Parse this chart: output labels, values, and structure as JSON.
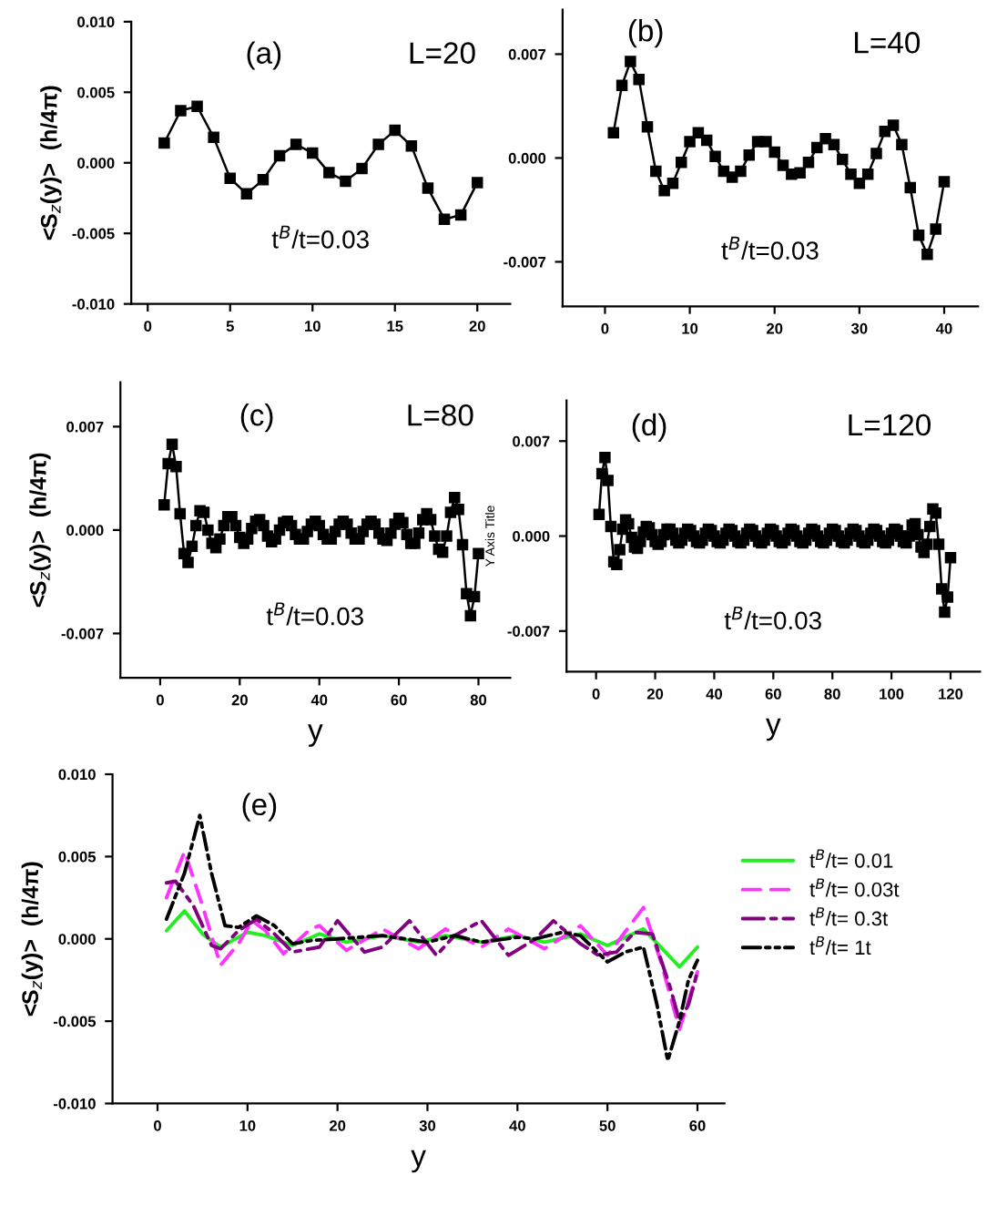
{
  "chart_data": [
    {
      "type": "line",
      "ylabel": "<S$_{z}$(y)>  (h/4π)",
      "annotations": [
        "(a)",
        "L=20",
        "t$^{B}$/t=0.03"
      ],
      "marker": "square",
      "line_style": "solid",
      "x": [
        1,
        2,
        3,
        4,
        5,
        6,
        7,
        8,
        9,
        10,
        11,
        12,
        13,
        14,
        15,
        16,
        17,
        18,
        19,
        20
      ],
      "series": [
        {
          "color": "#000000",
          "values": [
            0.0014,
            0.0037,
            0.004,
            0.0018,
            -0.0011,
            -0.0022,
            -0.0012,
            0.0005,
            0.0013,
            0.0007,
            -0.0007,
            -0.0013,
            -0.0004,
            0.0013,
            0.0023,
            0.0012,
            -0.0018,
            -0.004,
            -0.0037,
            -0.0014
          ]
        }
      ],
      "xlim": [
        -1,
        22
      ],
      "xticks": [
        0,
        5,
        10,
        15,
        20
      ],
      "ylim": [
        -0.01,
        0.01
      ],
      "yticks": [
        {
          "value": -0.01,
          "label": "-0.010"
        },
        {
          "value": -0.005,
          "label": "-0.005"
        },
        {
          "value": 0,
          "label": "0.000"
        },
        {
          "value": 0.005,
          "label": "0.005"
        },
        {
          "value": 0.01,
          "label": "0.010"
        }
      ]
    },
    {
      "type": "line",
      "annotations": [
        "(b)",
        "L=40",
        "t$^{B}$/t=0.03"
      ],
      "marker": "square",
      "line_style": "solid",
      "x": [
        1,
        2,
        3,
        4,
        5,
        6,
        7,
        8,
        9,
        10,
        11,
        12,
        13,
        14,
        15,
        16,
        17,
        18,
        19,
        20,
        21,
        22,
        23,
        24,
        25,
        26,
        27,
        28,
        29,
        30,
        31,
        32,
        33,
        34,
        35,
        36,
        37,
        38,
        39,
        40
      ],
      "series": [
        {
          "color": "#000000",
          "values": [
            0.0017,
            0.0049,
            0.0065,
            0.0053,
            0.0021,
            -0.0009,
            -0.0022,
            -0.0017,
            -0.0003,
            0.0011,
            0.0017,
            0.0012,
            0.0001,
            -0.0009,
            -0.0013,
            -0.0009,
            0.0002,
            0.0011,
            0.0011,
            0.0004,
            -0.0005,
            -0.0011,
            -0.001,
            -0.0003,
            0.0007,
            0.0013,
            0.0009,
            -0.0001,
            -0.0011,
            -0.0017,
            -0.0011,
            0.0003,
            0.0018,
            0.0022,
            0.0009,
            -0.002,
            -0.0052,
            -0.0065,
            -0.0048,
            -0.0016
          ]
        }
      ],
      "xlim": [
        -5,
        44
      ],
      "xticks": [
        0,
        10,
        20,
        30,
        40
      ],
      "ylim": [
        -0.01,
        0.01
      ],
      "yticks": [
        {
          "value": -0.007,
          "label": "-0.007"
        },
        {
          "value": 0,
          "label": "0.000"
        },
        {
          "value": 0.007,
          "label": "0.007"
        }
      ]
    },
    {
      "type": "line",
      "ylabel": "<S$_{z}$(y)>  (h/4π)",
      "xlabel": "y",
      "annotations": [
        "(c)",
        "L=80",
        "t$^{B}$/t=0.03"
      ],
      "marker": "square",
      "line_style": "solid",
      "x": [
        1,
        2,
        3,
        4,
        5,
        6,
        7,
        8,
        9,
        10,
        11,
        12,
        13,
        14,
        15,
        16,
        17,
        18,
        19,
        20,
        21,
        22,
        23,
        24,
        25,
        26,
        27,
        28,
        29,
        30,
        31,
        32,
        33,
        34,
        35,
        36,
        37,
        38,
        39,
        40,
        41,
        42,
        43,
        44,
        45,
        46,
        47,
        48,
        49,
        50,
        51,
        52,
        53,
        54,
        55,
        56,
        57,
        58,
        59,
        60,
        61,
        62,
        63,
        64,
        65,
        66,
        67,
        68,
        69,
        70,
        71,
        72,
        73,
        74,
        75,
        76,
        77,
        78,
        79,
        80
      ],
      "series": [
        {
          "color": "#000000",
          "values": [
            0.0017,
            0.0045,
            0.0058,
            0.0043,
            0.0011,
            -0.0016,
            -0.0022,
            -0.0011,
            0.0003,
            0.0013,
            0.0012,
            0.0,
            -0.0009,
            -0.0012,
            -0.0006,
            0.0003,
            0.0009,
            0.0009,
            0.0003,
            -0.0005,
            -0.0009,
            -0.0006,
            0.0001,
            0.0006,
            0.0007,
            0.0003,
            -0.0004,
            -0.0008,
            -0.0006,
            0.0,
            0.0005,
            0.0006,
            0.0003,
            -0.0003,
            -0.0006,
            -0.0006,
            -0.0001,
            0.0004,
            0.0006,
            0.0003,
            -0.0003,
            -0.0006,
            -0.0006,
            -0.0001,
            0.0004,
            0.0006,
            0.0004,
            -0.0002,
            -0.0006,
            -0.0006,
            -0.0001,
            0.0004,
            0.0006,
            0.0004,
            -0.0002,
            -0.0006,
            -0.0007,
            -0.0002,
            0.0004,
            0.0008,
            0.0005,
            -0.0003,
            -0.0009,
            -0.0009,
            -0.0002,
            0.0007,
            0.0011,
            0.0007,
            -0.0004,
            -0.0013,
            -0.0015,
            -0.0004,
            0.0012,
            0.0022,
            0.0014,
            -0.001,
            -0.0043,
            -0.0058,
            -0.0045,
            -0.0016
          ]
        }
      ],
      "xlim": [
        -10,
        88
      ],
      "xticks": [
        0,
        20,
        40,
        60,
        80
      ],
      "ylim": [
        -0.01,
        0.01
      ],
      "yticks": [
        {
          "value": -0.007,
          "label": "-0.007"
        },
        {
          "value": 0,
          "label": "0.000"
        },
        {
          "value": 0.007,
          "label": "0.007"
        }
      ]
    },
    {
      "type": "line",
      "ylabel": "Y Axis Title",
      "xlabel": "y",
      "annotations": [
        "(d)",
        "L=120",
        "t$^{B}$/t=0.03"
      ],
      "marker": "square",
      "line_style": "solid",
      "x": [
        1,
        2,
        3,
        4,
        5,
        6,
        7,
        8,
        9,
        10,
        11,
        12,
        13,
        14,
        15,
        16,
        17,
        18,
        19,
        20,
        21,
        22,
        23,
        24,
        25,
        26,
        27,
        28,
        29,
        30,
        31,
        32,
        33,
        34,
        35,
        36,
        37,
        38,
        39,
        40,
        41,
        42,
        43,
        44,
        45,
        46,
        47,
        48,
        49,
        50,
        51,
        52,
        53,
        54,
        55,
        56,
        57,
        58,
        59,
        60,
        61,
        62,
        63,
        64,
        65,
        66,
        67,
        68,
        69,
        70,
        71,
        72,
        73,
        74,
        75,
        76,
        77,
        78,
        79,
        80,
        81,
        82,
        83,
        84,
        85,
        86,
        87,
        88,
        89,
        90,
        91,
        92,
        93,
        94,
        95,
        96,
        97,
        98,
        99,
        100,
        101,
        102,
        103,
        104,
        105,
        106,
        107,
        108,
        109,
        110,
        111,
        112,
        113,
        114,
        115,
        116,
        117,
        118,
        119,
        120
      ],
      "series": [
        {
          "color": "#000000",
          "values": [
            0.0016,
            0.0046,
            0.0058,
            0.0041,
            0.0007,
            -0.0019,
            -0.0021,
            -0.001,
            0.0005,
            0.0012,
            0.0009,
            -0.0001,
            -0.0008,
            -0.0009,
            -0.0004,
            0.0003,
            0.0007,
            0.0006,
            0.0001,
            -0.0004,
            -0.0006,
            -0.0004,
            0.0001,
            0.0005,
            0.0005,
            0.0002,
            -0.0003,
            -0.0005,
            -0.0003,
            0.0002,
            0.0005,
            0.0004,
            0.0,
            -0.0004,
            -0.0005,
            -0.0003,
            0.0002,
            0.0005,
            0.0004,
            0.0,
            -0.0004,
            -0.0005,
            -0.0003,
            0.0002,
            0.0005,
            0.0004,
            0.0,
            -0.0004,
            -0.0005,
            -0.0003,
            0.0002,
            0.0005,
            0.0004,
            0.0,
            -0.0004,
            -0.0005,
            -0.0003,
            0.0002,
            0.0005,
            0.0004,
            0.0,
            -0.0004,
            -0.0005,
            -0.0003,
            0.0002,
            0.0005,
            0.0004,
            0.0,
            -0.0004,
            -0.0005,
            -0.0003,
            0.0002,
            0.0005,
            0.0004,
            0.0,
            -0.0004,
            -0.0005,
            -0.0003,
            0.0002,
            0.0005,
            0.0004,
            0.0,
            -0.0004,
            -0.0005,
            -0.0003,
            0.0002,
            0.0005,
            0.0004,
            0.0,
            -0.0004,
            -0.0005,
            -0.0003,
            0.0002,
            0.0005,
            0.0004,
            0.0,
            -0.0004,
            -0.0005,
            -0.0003,
            0.0002,
            0.0005,
            0.0004,
            0.0,
            -0.0004,
            -0.0005,
            0.0,
            0.0008,
            0.0009,
            0.0001,
            -0.0008,
            -0.0012,
            -0.0006,
            0.0007,
            0.002,
            0.0017,
            -0.0006,
            -0.0039,
            -0.0056,
            -0.0045,
            -0.0016
          ]
        }
      ],
      "xlim": [
        -10,
        130
      ],
      "xticks": [
        0,
        20,
        40,
        60,
        80,
        100,
        120
      ],
      "ylim": [
        -0.01,
        0.01
      ],
      "yticks": [
        {
          "value": -0.007,
          "label": "-0.007"
        },
        {
          "value": 0,
          "label": "0.000"
        },
        {
          "value": 0.007,
          "label": "0.007"
        }
      ]
    },
    {
      "type": "line",
      "ylabel": "<S$_{z}$(y)>  (h/4π)",
      "xlabel": "y",
      "annotations": [
        "(e)"
      ],
      "marker": "none",
      "legend": "right",
      "series": [
        {
          "name": "t$^{B}$/t= 0.01",
          "color": "#22ee22",
          "line_style": "solid",
          "x": [
            1,
            3,
            5,
            7,
            10,
            12,
            15,
            18,
            21,
            25,
            29,
            32,
            36,
            40,
            43,
            47,
            50,
            54,
            58,
            60
          ],
          "values": [
            0.0005,
            0.0017,
            0.0003,
            -0.0005,
            0.0004,
            0.0002,
            -0.0004,
            0.0003,
            -0.0002,
            0.0002,
            -0.0002,
            0.0002,
            -0.0002,
            0.0002,
            -0.0002,
            0.0003,
            -0.0004,
            0.0006,
            -0.0017,
            -0.0005
          ]
        },
        {
          "name": "t$^{B}$/t= 0.03t",
          "color": "#ff33ff",
          "line_style": "dashed",
          "x": [
            1,
            3,
            5,
            7,
            9,
            10.5,
            12,
            14,
            17,
            18,
            21,
            25,
            29,
            32,
            36,
            39,
            43,
            47,
            50,
            54,
            56,
            58,
            60
          ],
          "values": [
            0.0025,
            0.0053,
            0.002,
            -0.0016,
            -0.0003,
            0.0011,
            0.0005,
            -0.0009,
            0.0006,
            0.0008,
            -0.0007,
            0.0006,
            -0.0006,
            0.0006,
            -0.0005,
            0.0006,
            -0.0006,
            0.0008,
            -0.001,
            0.0019,
            -0.0015,
            -0.0055,
            -0.002
          ]
        },
        {
          "name": "t$^{B}$/t= 0.3t",
          "color": "#800080",
          "line_style": "dashdot",
          "x": [
            1,
            2,
            4,
            6,
            7,
            9,
            11,
            13,
            15,
            18,
            20,
            23,
            25,
            28,
            31,
            33,
            36,
            39,
            42,
            44,
            47,
            49,
            51,
            53,
            55,
            57,
            58,
            59,
            60
          ],
          "values": [
            0.0034,
            0.0035,
            0.002,
            -0.0004,
            -0.0006,
            0.0005,
            0.0012,
            0.0003,
            -0.0008,
            -0.0005,
            0.0011,
            -0.0008,
            -0.0005,
            0.0011,
            -0.001,
            0.0002,
            0.0011,
            -0.001,
            0.0,
            0.0011,
            -0.0003,
            -0.001,
            -0.0008,
            0.0004,
            0.0003,
            -0.003,
            -0.005,
            -0.004,
            -0.002
          ]
        },
        {
          "name": "t$^{B}$/t= 1t",
          "color": "#000000",
          "line_style": "dashdotdot",
          "x": [
            1,
            3,
            4.7,
            6,
            7.5,
            9,
            11,
            13,
            15,
            17,
            20,
            25,
            30,
            33,
            36,
            40,
            42,
            45,
            47,
            50,
            52,
            54,
            55.5,
            56.7,
            58,
            59,
            60
          ],
          "values": [
            0.0012,
            0.004,
            0.0075,
            0.004,
            0.0008,
            0.0007,
            0.0014,
            0.0008,
            -0.0003,
            -0.0001,
            0.0,
            0.0002,
            -0.0002,
            0.0002,
            -0.0002,
            0.0001,
            0.0,
            0.0004,
            0.0002,
            -0.0014,
            -0.0008,
            -0.0005,
            -0.004,
            -0.0074,
            -0.005,
            -0.0025,
            -0.0013
          ]
        }
      ],
      "xlim": [
        -5,
        63
      ],
      "xticks": [
        0,
        10,
        20,
        30,
        40,
        50,
        60
      ],
      "ylim": [
        -0.01,
        0.01
      ],
      "yticks": [
        {
          "value": -0.01,
          "label": "-0.010"
        },
        {
          "value": -0.005,
          "label": "-0.005"
        },
        {
          "value": 0,
          "label": "0.000"
        },
        {
          "value": 0.005,
          "label": "0.005"
        },
        {
          "value": 0.01,
          "label": "0.010"
        }
      ]
    }
  ]
}
